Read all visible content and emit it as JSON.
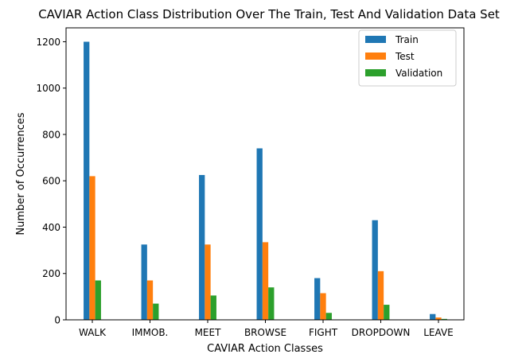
{
  "chart_data": {
    "type": "bar",
    "title": "CAVIAR Action Class Distribution Over The Train, Test And Validation Data Set",
    "xlabel": "CAVIAR Action Classes",
    "ylabel": "Number of Occurrences",
    "categories": [
      "WALK",
      "IMMOB.",
      "MEET",
      "BROWSE",
      "FIGHT",
      "DROPDOWN",
      "LEAVE"
    ],
    "series": [
      {
        "name": "Train",
        "color": "#1f77b4",
        "values": [
          1200,
          325,
          625,
          740,
          180,
          430,
          25
        ]
      },
      {
        "name": "Test",
        "color": "#ff7f0e",
        "values": [
          620,
          170,
          325,
          335,
          115,
          210,
          10
        ]
      },
      {
        "name": "Validation",
        "color": "#2ca02c",
        "values": [
          170,
          70,
          105,
          140,
          30,
          65,
          4
        ]
      }
    ],
    "ylim": [
      0,
      1260
    ],
    "yticks": [
      0,
      200,
      400,
      600,
      800,
      1000,
      1200
    ],
    "legend": "top-right",
    "grid": false
  }
}
